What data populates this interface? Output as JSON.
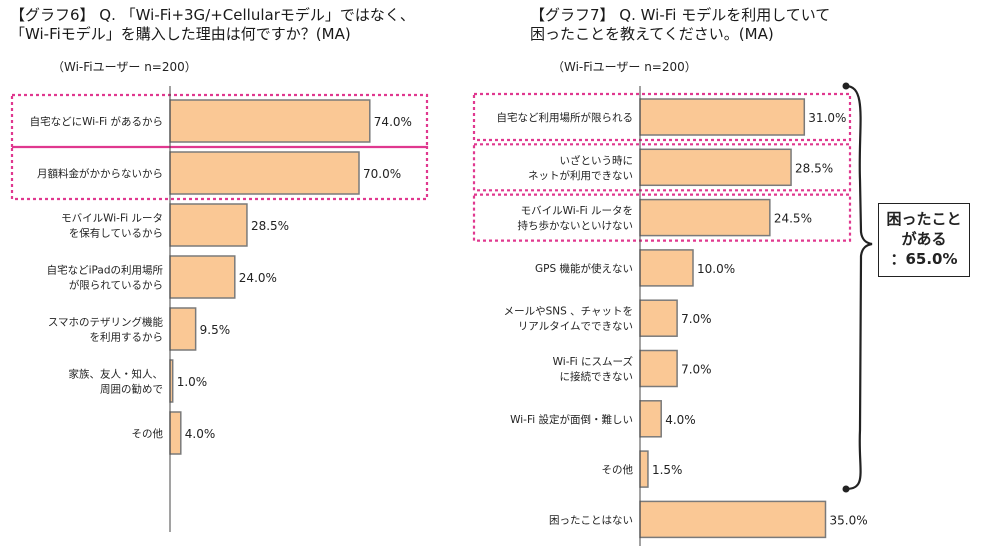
{
  "left_chart": {
    "title": "【グラフ6】 Q. 「Wi-Fi+3G/+Cellularモデル」ではなく、\n「Wi-Fiモデル」を購入した理由は何ですか？(MA)",
    "subtitle": "（Wi-Fiユーザー n=200）"
  },
  "right_chart": {
    "title": "【グラフ7】 Q. Wi-Fi モデルを利用していて\n困ったことを教えてください。(MA)",
    "subtitle": "（Wi-Fiユーザー n=200）"
  },
  "callout": {
    "text": "困ったこと\nがある\n：65.0%"
  },
  "colors": {
    "bar_fill": "#fac895",
    "bar_stroke": "#7a7a7a",
    "highlight": "#e0388f"
  },
  "chart_data": [
    {
      "type": "bar",
      "orientation": "horizontal",
      "title": "【グラフ6】 Q. 「Wi-Fi+3G/+Cellularモデル」ではなく、「Wi-Fiモデル」を購入した理由は何ですか？(MA)",
      "categories": [
        "自宅などにWi-Fi があるから",
        "月額料金がかからないから",
        "モバイルWi-Fi ルータを保有しているから",
        "自宅などiPadの利用場所が限られているから",
        "スマホのテザリング機能を利用するから",
        "家族、友人・知人、周囲の勧めで",
        "その他"
      ],
      "category_lines": [
        [
          "自宅などにWi-Fi があるから"
        ],
        [
          "月額料金がかからないから"
        ],
        [
          "モバイルWi-Fi ルータ",
          "を保有しているから"
        ],
        [
          "自宅などiPadの利用場所",
          "が限られているから"
        ],
        [
          "スマホのテザリング機能",
          "を利用するから"
        ],
        [
          "家族、友人・知人、",
          "周囲の勧めで"
        ],
        [
          "その他"
        ]
      ],
      "values": [
        74.0,
        70.0,
        28.5,
        24.0,
        9.5,
        1.0,
        4.0
      ],
      "labels": [
        "74.0%",
        "70.0%",
        "28.5%",
        "24.0%",
        "9.5%",
        "1.0%",
        "4.0%"
      ],
      "highlighted": [
        0,
        1
      ],
      "xlim": [
        0,
        100
      ]
    },
    {
      "type": "bar",
      "orientation": "horizontal",
      "title": "【グラフ7】 Q. Wi-Fi モデルを利用していて困ったことを教えてください。(MA)",
      "categories": [
        "自宅など利用場所が限られる",
        "いざという時にネットが利用できない",
        "モバイルWi-Fi ルータを持ち歩かないといけない",
        "GPS 機能が使えない",
        "メールやSNS 、チャットをリアルタイムでできない",
        "Wi-Fi にスムーズに接続できない",
        "Wi-Fi 設定が面倒・難しい",
        "その他",
        "困ったことはない"
      ],
      "category_lines": [
        [
          "自宅など利用場所が限られる"
        ],
        [
          "いざという時に",
          "ネットが利用できない"
        ],
        [
          "モバイルWi-Fi ルータを",
          "持ち歩かないといけない"
        ],
        [
          "GPS 機能が使えない"
        ],
        [
          "メールやSNS 、チャットを",
          "リアルタイムでできない"
        ],
        [
          "Wi-Fi にスムーズ",
          "に接続できない"
        ],
        [
          "Wi-Fi 設定が面倒・難しい"
        ],
        [
          "その他"
        ],
        [
          "困ったことはない"
        ]
      ],
      "values": [
        31.0,
        28.5,
        24.5,
        10.0,
        7.0,
        7.0,
        4.0,
        1.5,
        35.0
      ],
      "labels": [
        "31.0%",
        "28.5%",
        "24.5%",
        "10.0%",
        "7.0%",
        "7.0%",
        "4.0%",
        "1.5%",
        "35.0%"
      ],
      "highlighted": [
        0,
        1,
        2
      ],
      "xlim": [
        0,
        100
      ]
    }
  ]
}
